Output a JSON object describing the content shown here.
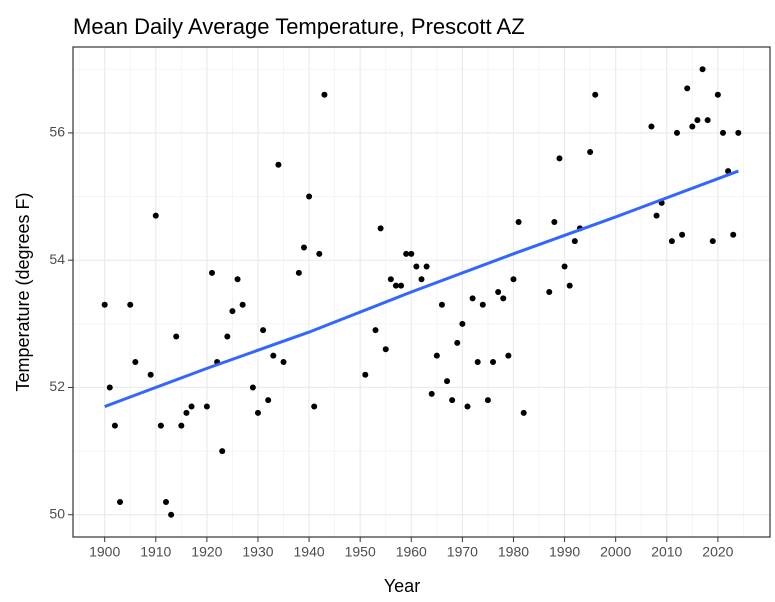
{
  "chart_data": {
    "type": "scatter",
    "title": "Mean Daily Average Temperature, Prescott AZ",
    "x_label": "Year",
    "y_label": "Temperature (degrees F)",
    "x": [
      1900,
      1901,
      1902,
      1903,
      1905,
      1906,
      1909,
      1910,
      1911,
      1912,
      1913,
      1914,
      1915,
      1916,
      1917,
      1920,
      1921,
      1922,
      1923,
      1924,
      1925,
      1926,
      1927,
      1929,
      1930,
      1931,
      1932,
      1933,
      1934,
      1935,
      1938,
      1939,
      1940,
      1941,
      1942,
      1943,
      1951,
      1953,
      1954,
      1955,
      1956,
      1957,
      1958,
      1959,
      1960,
      1961,
      1962,
      1963,
      1964,
      1965,
      1966,
      1967,
      1968,
      1969,
      1970,
      1971,
      1972,
      1973,
      1974,
      1975,
      1976,
      1977,
      1978,
      1979,
      1980,
      1981,
      1982,
      1987,
      1988,
      1989,
      1990,
      1991,
      1992,
      1993,
      1995,
      1996,
      2007,
      2008,
      2009,
      2011,
      2012,
      2013,
      2014,
      2015,
      2016,
      2017,
      2018,
      2019,
      2020,
      2021,
      2022,
      2023,
      2024
    ],
    "values": [
      53.3,
      52.0,
      51.4,
      50.2,
      53.3,
      52.4,
      52.2,
      54.7,
      51.4,
      50.2,
      50.0,
      52.8,
      51.4,
      51.6,
      51.7,
      51.7,
      53.8,
      52.4,
      51.0,
      52.8,
      53.2,
      53.7,
      53.3,
      52.0,
      51.6,
      52.9,
      51.8,
      52.5,
      55.5,
      52.4,
      53.8,
      54.2,
      55.0,
      51.7,
      54.1,
      56.6,
      52.2,
      52.9,
      54.5,
      52.6,
      53.7,
      53.6,
      53.6,
      54.1,
      54.1,
      53.9,
      53.7,
      53.9,
      51.9,
      52.5,
      53.3,
      52.1,
      51.8,
      52.7,
      53.0,
      51.7,
      53.4,
      52.4,
      53.3,
      51.8,
      52.4,
      53.5,
      53.4,
      52.5,
      53.7,
      54.6,
      51.6,
      53.5,
      54.6,
      55.6,
      53.9,
      53.6,
      54.3,
      54.5,
      55.7,
      56.6,
      56.1,
      54.7,
      54.9,
      54.3,
      56.0,
      54.4,
      56.7,
      56.1,
      56.2,
      57.0,
      56.2,
      54.3,
      56.6,
      56.0,
      55.4,
      54.4,
      56.0
    ],
    "color": "#000000",
    "trend_line": {
      "x": [
        1900,
        1920,
        1940,
        1960,
        1980,
        2000,
        2024
      ],
      "values": [
        51.7,
        52.3,
        52.87,
        53.5,
        54.1,
        54.68,
        55.4
      ],
      "color": "#3366ff"
    },
    "xlim": [
      1893.8,
      2030.2
    ],
    "ylim": [
      49.65,
      57.35
    ],
    "xticks": [
      1900,
      1910,
      1920,
      1930,
      1940,
      1950,
      1960,
      1970,
      1980,
      1990,
      2000,
      2010,
      2020
    ],
    "yticks": [
      50,
      52,
      54,
      56
    ],
    "grid": true
  }
}
